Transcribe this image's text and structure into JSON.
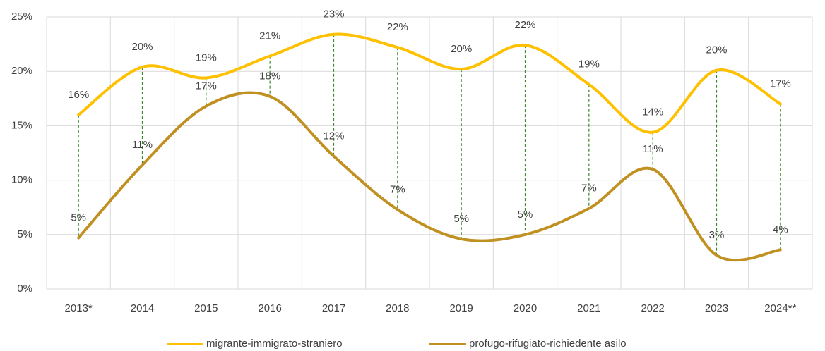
{
  "chart_data": {
    "type": "line",
    "categories": [
      "2013*",
      "2014",
      "2015",
      "2016",
      "2017",
      "2018",
      "2019",
      "2020",
      "2021",
      "2022",
      "2023",
      "2024**"
    ],
    "series": [
      {
        "name": "migrante-immigrato-straniero",
        "color": "#ffc000",
        "values": [
          16.0,
          20.4,
          19.4,
          21.4,
          23.4,
          22.2,
          20.2,
          22.4,
          18.8,
          14.4,
          20.1,
          17.0
        ],
        "value_labels": [
          "16%",
          "20%",
          "19%",
          "21%",
          "23%",
          "22%",
          "20%",
          "22%",
          "19%",
          "14%",
          "20%",
          "17%"
        ]
      },
      {
        "name": "profugo-rifugiato-richiedente asilo",
        "color": "#c09020",
        "values": [
          4.7,
          11.4,
          16.8,
          17.7,
          12.2,
          7.3,
          4.6,
          5.0,
          7.4,
          11.0,
          3.1,
          3.6
        ],
        "value_labels": [
          "5%",
          "11%",
          "17%",
          "18%",
          "12%",
          "7%",
          "5%",
          "5%",
          "7%",
          "11%",
          "3%",
          "4%"
        ]
      }
    ],
    "ylim": [
      0,
      25
    ],
    "yticks": [
      {
        "value": 0,
        "label": "0%"
      },
      {
        "value": 5,
        "label": "5%"
      },
      {
        "value": 10,
        "label": "10%"
      },
      {
        "value": 15,
        "label": "15%"
      },
      {
        "value": 20,
        "label": "20%"
      },
      {
        "value": 25,
        "label": "25%"
      }
    ],
    "grid": true,
    "legend": "bottom",
    "drop_lines": true
  }
}
